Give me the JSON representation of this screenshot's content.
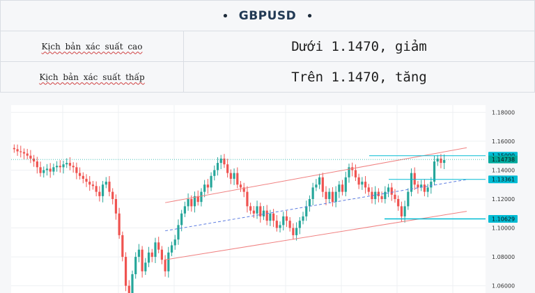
{
  "header": {
    "bullet_left": "•",
    "title": "GBPUSD",
    "bullet_right": "•"
  },
  "scenarios": [
    {
      "label": "Kịch bản xác suất cao",
      "value": "Dưới 1.1470, giảm"
    },
    {
      "label": "Kịch bản xác suất thấp",
      "value": "Trên 1.1470, tăng"
    }
  ],
  "colors": {
    "up": "#26a69a",
    "down": "#ef5350",
    "channel": "#f08080",
    "midline": "#5b7be0",
    "level": "#00bcd4",
    "current": "#00a99d"
  },
  "chart_data": {
    "type": "candlestick",
    "symbol": "GBPUSD",
    "ylim": [
      1.055,
      1.185
    ],
    "y_ticks": [
      "1.18000",
      "1.16000",
      "1.14000",
      "1.12000",
      "1.10000",
      "1.08000",
      "1.06000"
    ],
    "price_labels": [
      {
        "label": "1.15000",
        "value": 1.15,
        "kind": "level"
      },
      {
        "label": "1.14738",
        "value": 1.14738,
        "kind": "current"
      },
      {
        "label": "1.13361",
        "value": 1.13361,
        "kind": "level"
      },
      {
        "label": "1.10629",
        "value": 1.10629,
        "kind": "level"
      }
    ],
    "closes": [
      1.1545,
      1.153,
      1.1525,
      1.1515,
      1.15,
      1.148,
      1.146,
      1.142,
      1.138,
      1.14,
      1.141,
      1.139,
      1.142,
      1.143,
      1.142,
      1.144,
      1.145,
      1.143,
      1.142,
      1.138,
      1.136,
      1.134,
      1.132,
      1.13,
      1.129,
      1.125,
      1.122,
      1.13,
      1.132,
      1.125,
      1.12,
      1.11,
      1.095,
      1.08,
      1.06,
      1.052,
      1.068,
      1.08,
      1.085,
      1.07,
      1.076,
      1.083,
      1.08,
      1.09,
      1.085,
      1.078,
      1.07,
      1.083,
      1.088,
      1.092,
      1.102,
      1.11,
      1.115,
      1.12,
      1.115,
      1.122,
      1.118,
      1.125,
      1.13,
      1.128,
      1.136,
      1.14,
      1.145,
      1.148,
      1.144,
      1.138,
      1.134,
      1.138,
      1.13,
      1.128,
      1.125,
      1.115,
      1.112,
      1.11,
      1.115,
      1.108,
      1.112,
      1.105,
      1.11,
      1.105,
      1.1,
      1.102,
      1.108,
      1.105,
      1.1,
      1.095,
      1.1,
      1.105,
      1.108,
      1.115,
      1.12,
      1.128,
      1.13,
      1.135,
      1.125,
      1.12,
      1.125,
      1.118,
      1.125,
      1.13,
      1.125,
      1.135,
      1.142,
      1.14,
      1.135,
      1.13,
      1.132,
      1.128,
      1.125,
      1.12,
      1.125,
      1.122,
      1.12,
      1.125,
      1.128,
      1.123,
      1.12,
      1.115,
      1.108,
      1.115,
      1.125,
      1.138,
      1.13,
      1.128,
      1.13,
      1.125,
      1.128,
      1.132,
      1.146,
      1.148,
      1.145,
      1.147
    ]
  }
}
